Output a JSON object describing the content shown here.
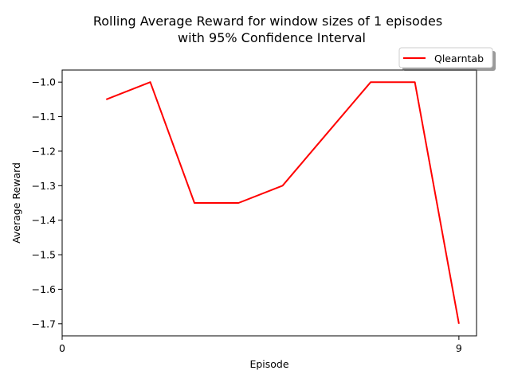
{
  "chart_data": {
    "type": "line",
    "title_line1": "Rolling Average Reward for window sizes of 1 episodes",
    "title_line2": "with 95% Confidence Interval",
    "xlabel": "Episode",
    "ylabel": "Average Reward",
    "xlim": [
      0,
      9.4
    ],
    "ylim": [
      -1.735,
      -0.965
    ],
    "xticks": [
      0,
      9
    ],
    "xtick_labels": [
      "0",
      "9"
    ],
    "yticks": [
      -1.0,
      -1.1,
      -1.2,
      -1.3,
      -1.4,
      -1.5,
      -1.6,
      -1.7
    ],
    "ytick_labels": [
      "−1.0",
      "−1.1",
      "−1.2",
      "−1.3",
      "−1.4",
      "−1.5",
      "−1.6",
      "−1.7"
    ],
    "grid": false,
    "legend_position": "top-right, above plot",
    "series": [
      {
        "name": "Qlearntab",
        "color": "#ff0000",
        "x": [
          1,
          2,
          3,
          4,
          5,
          6,
          7,
          8,
          9
        ],
        "y": [
          -1.05,
          -1.0,
          -1.35,
          -1.35,
          -1.3,
          -1.15,
          -1.0,
          -1.0,
          -1.7
        ]
      }
    ]
  }
}
